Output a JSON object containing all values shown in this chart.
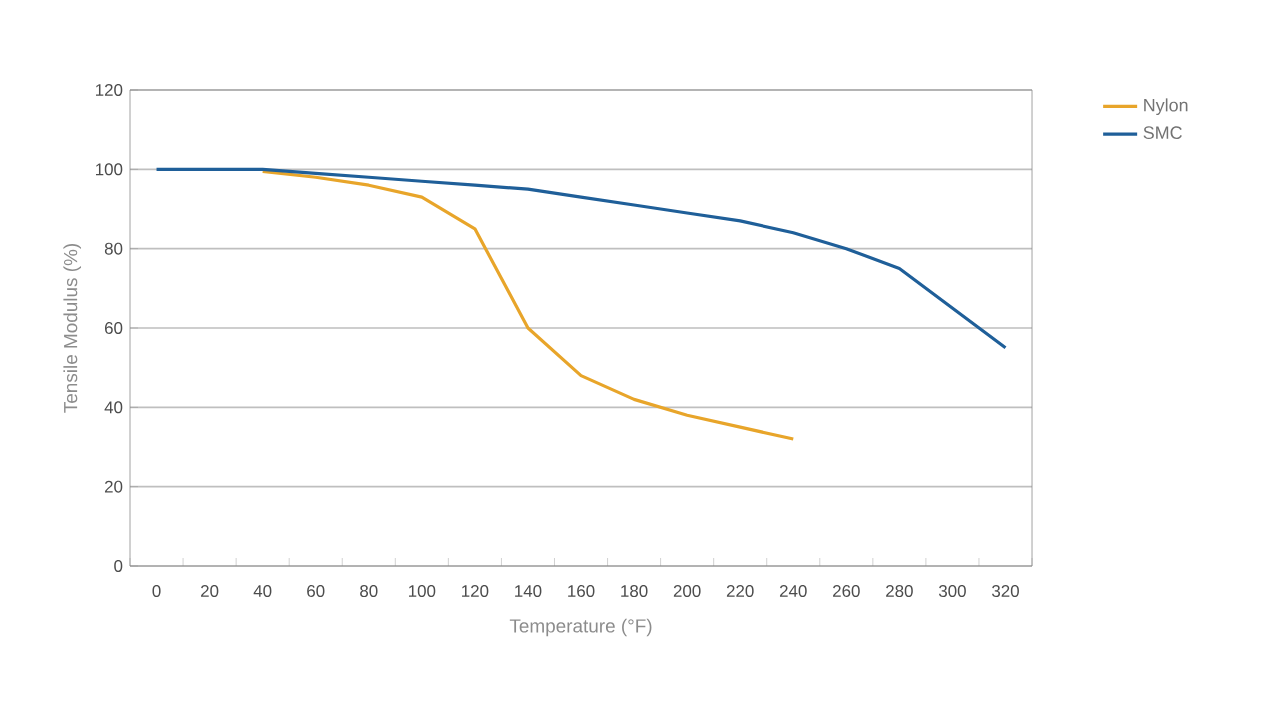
{
  "chart_data": {
    "type": "line",
    "xlabel": "Temperature (°F)",
    "ylabel": "Tensile Modulus (%)",
    "categories": [
      "0",
      "20",
      "40",
      "60",
      "80",
      "100",
      "120",
      "140",
      "160",
      "180",
      "200",
      "220",
      "240",
      "260",
      "280",
      "300",
      "320"
    ],
    "series": [
      {
        "name": "Nylon",
        "color": "#e8a52a",
        "values": [
          null,
          null,
          99.5,
          98,
          96,
          93,
          85,
          60,
          48,
          42,
          38,
          35,
          32,
          null,
          null,
          null,
          null
        ]
      },
      {
        "name": "SMC",
        "color": "#1f5f99",
        "values": [
          100,
          100,
          100,
          99,
          98,
          97,
          96,
          95,
          93,
          91,
          89,
          87,
          84,
          80,
          75,
          65,
          55
        ]
      }
    ],
    "ylim": [
      0,
      120
    ],
    "yticks": [
      0,
      20,
      40,
      60,
      80,
      100,
      120
    ],
    "grid": "y",
    "legend": "top right",
    "marker": "none",
    "line_style": "solid"
  }
}
